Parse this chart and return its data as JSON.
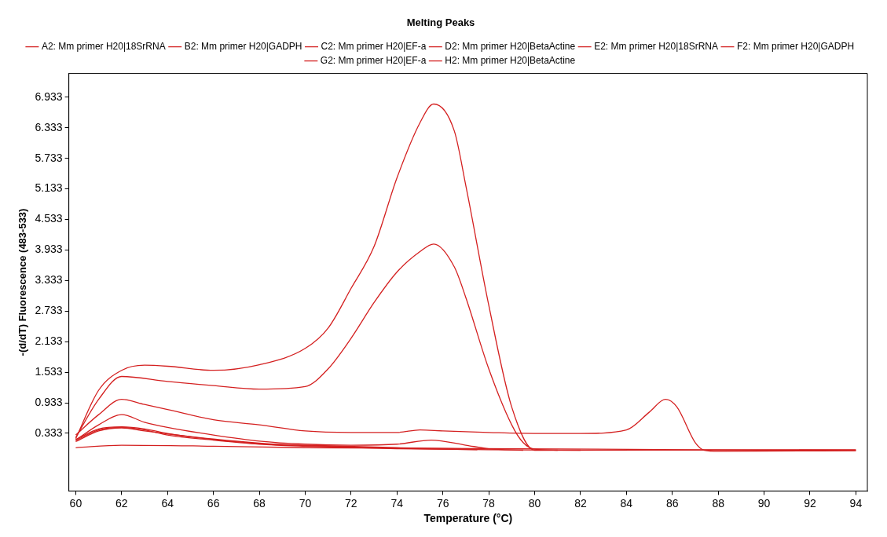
{
  "chart_data": {
    "type": "line",
    "title": "Melting Peaks",
    "xlabel": "Temperature (°C)",
    "ylabel": "-(d/dT) Fluorescence (483-533)",
    "xlim": [
      59.7,
      94.5
    ],
    "xticks": [
      60,
      62,
      64,
      66,
      68,
      70,
      72,
      74,
      76,
      78,
      80,
      82,
      84,
      86,
      88,
      90,
      92,
      94
    ],
    "ylim": [
      -0.8,
      7.4
    ],
    "yticks": [
      0.333,
      0.933,
      1.533,
      2.133,
      2.733,
      3.333,
      3.933,
      4.533,
      5.133,
      5.733,
      6.333,
      6.933
    ],
    "grid": false,
    "legend": "top",
    "marker": "none",
    "line_style": "solid",
    "series": [
      {
        "name": "A2: Mm primer H20|18SrRNA",
        "color": "#d42020",
        "x": [
          60,
          61,
          62,
          63,
          64,
          66,
          68,
          70,
          71,
          72,
          73,
          74,
          75,
          75.6,
          76.5,
          77,
          78,
          79,
          80,
          94
        ],
        "values": [
          0.23,
          1.18,
          1.57,
          1.67,
          1.65,
          1.57,
          1.68,
          2.0,
          2.4,
          3.18,
          4.0,
          5.35,
          6.43,
          6.8,
          6.27,
          5.2,
          2.85,
          0.85,
          0,
          0.01
        ]
      },
      {
        "name": "B2: Mm primer H20|GADPH",
        "color": "#d42020",
        "x": [
          60,
          61,
          62,
          64,
          66,
          68,
          70,
          71,
          72,
          73,
          74,
          75,
          75.6,
          76.5,
          77,
          78,
          79,
          79.5,
          80,
          81
        ],
        "values": [
          0.25,
          1.0,
          1.45,
          1.35,
          1.27,
          1.2,
          1.25,
          1.6,
          2.2,
          2.9,
          3.5,
          3.9,
          4.05,
          3.6,
          3.0,
          1.6,
          0.5,
          0.15,
          0.02,
          0
        ]
      },
      {
        "name": "C2: Mm primer H20|EF-a",
        "color": "#d42020",
        "x": [
          60,
          61,
          62,
          63,
          64,
          66,
          68,
          70,
          72,
          74,
          75,
          76,
          78,
          80,
          82,
          84,
          85,
          85.7,
          86.2,
          87,
          87.4,
          88,
          94
        ],
        "values": [
          0.3,
          0.7,
          1.0,
          0.9,
          0.8,
          0.6,
          0.5,
          0.38,
          0.35,
          0.35,
          0.4,
          0.38,
          0.35,
          0.33,
          0.33,
          0.4,
          0.75,
          1.0,
          0.85,
          0.15,
          0,
          -0.02,
          -0.01
        ]
      },
      {
        "name": "D2: Mm primer H20|BetaActine",
        "color": "#d42020",
        "x": [
          60,
          61,
          62,
          63,
          64,
          66,
          68,
          70,
          72,
          74,
          75.5,
          77,
          78,
          79.5
        ],
        "values": [
          0.2,
          0.5,
          0.7,
          0.55,
          0.45,
          0.3,
          0.18,
          0.12,
          0.1,
          0.12,
          0.2,
          0.1,
          0.03,
          0
        ]
      },
      {
        "name": "E2: Mm primer H20|18SrRNA",
        "color": "#d42020",
        "x": [
          60,
          61,
          62,
          63,
          64,
          66,
          68,
          70,
          74,
          78,
          82
        ],
        "values": [
          0.19,
          0.4,
          0.45,
          0.4,
          0.3,
          0.2,
          0.12,
          0.08,
          0.03,
          0.01,
          0
        ]
      },
      {
        "name": "F2: Mm primer H20|GADPH",
        "color": "#d42020",
        "x": [
          60,
          61,
          62,
          63,
          64,
          66,
          68,
          70,
          74,
          77.5
        ],
        "values": [
          0.17,
          0.38,
          0.44,
          0.38,
          0.32,
          0.22,
          0.14,
          0.09,
          0.04,
          0.01
        ]
      },
      {
        "name": "G2: Mm primer H20|EF-a",
        "color": "#d42020",
        "x": [
          60,
          61,
          62,
          63,
          64,
          66,
          68,
          70,
          74,
          78.5
        ],
        "values": [
          0.21,
          0.42,
          0.46,
          0.42,
          0.33,
          0.21,
          0.13,
          0.1,
          0.05,
          0.02
        ]
      },
      {
        "name": "H2: Mm primer H20|BetaActine",
        "color": "#d42020",
        "x": [
          60,
          62,
          66,
          70,
          94
        ],
        "values": [
          0.05,
          0.1,
          0.08,
          0.05,
          0
        ]
      }
    ]
  }
}
